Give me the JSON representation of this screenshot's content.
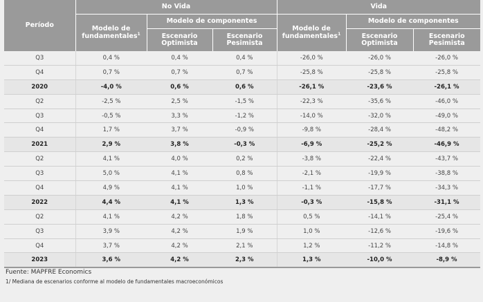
{
  "header": {
    "period": "Período",
    "no_vida": "No Vida",
    "vida": "Vida",
    "modelo_componentes": "Modelo de componentes",
    "modelo_fund_line1": "Modelo de",
    "modelo_fund_line2": "fundamentales",
    "footnote_mark": "1",
    "optimista_line1": "Escenario",
    "optimista_line2": "Optimista",
    "pesimista_line1": "Escenario",
    "pesimista_line2": "Pesimista"
  },
  "rows": [
    {
      "period": "Q3",
      "annual": false,
      "cells": [
        "0,4 %",
        "0,4 %",
        "0,4 %",
        "-26,0 %",
        "-26,0 %",
        "-26,0 %"
      ]
    },
    {
      "period": "Q4",
      "annual": false,
      "cells": [
        "0,7 %",
        "0,7 %",
        "0,7 %",
        "-25,8 %",
        "-25,8 %",
        "-25,8 %"
      ]
    },
    {
      "period": "2020",
      "annual": true,
      "cells": [
        "-4,0 %",
        "0,6 %",
        "0,6 %",
        "-26,1 %",
        "-23,6 %",
        "-26,1 %"
      ]
    },
    {
      "period": "Q2",
      "annual": false,
      "cells": [
        "-2,5 %",
        "2,5 %",
        "-1,5 %",
        "-22,3 %",
        "-35,6 %",
        "-46,0 %"
      ]
    },
    {
      "period": "Q3",
      "annual": false,
      "cells": [
        "-0,5 %",
        "3,3 %",
        "-1,2 %",
        "-14,0 %",
        "-32,0 %",
        "-49,0 %"
      ]
    },
    {
      "period": "Q4",
      "annual": false,
      "cells": [
        "1,7 %",
        "3,7 %",
        "-0,9 %",
        "-9,8 %",
        "-28,4 %",
        "-48,2 %"
      ]
    },
    {
      "period": "2021",
      "annual": true,
      "cells": [
        "2,9 %",
        "3,8 %",
        "-0,3 %",
        "-6,9 %",
        "-25,2 %",
        "-46,9 %"
      ]
    },
    {
      "period": "Q2",
      "annual": false,
      "cells": [
        "4,1 %",
        "4,0 %",
        "0,2 %",
        "-3,8 %",
        "-22,4 %",
        "-43,7 %"
      ]
    },
    {
      "period": "Q3",
      "annual": false,
      "cells": [
        "5,0 %",
        "4,1 %",
        "0,8 %",
        "-2,1 %",
        "-19,9 %",
        "-38,8 %"
      ]
    },
    {
      "period": "Q4",
      "annual": false,
      "cells": [
        "4,9 %",
        "4,1 %",
        "1,0 %",
        "-1,1 %",
        "-17,7 %",
        "-34,3 %"
      ]
    },
    {
      "period": "2022",
      "annual": true,
      "cells": [
        "4,4 %",
        "4,1 %",
        "1,3 %",
        "-0,3 %",
        "-15,8 %",
        "-31,1 %"
      ]
    },
    {
      "period": "Q2",
      "annual": false,
      "cells": [
        "4,1 %",
        "4,2 %",
        "1,8 %",
        "0,5 %",
        "-14,1 %",
        "-25,4 %"
      ]
    },
    {
      "period": "Q3",
      "annual": false,
      "cells": [
        "3,9 %",
        "4,2 %",
        "1,9 %",
        "1,0 %",
        "-12,6 %",
        "-19,6 %"
      ]
    },
    {
      "period": "Q4",
      "annual": false,
      "cells": [
        "3,7 %",
        "4,2 %",
        "2,1 %",
        "1,2 %",
        "-11,2 %",
        "-14,8 %"
      ]
    },
    {
      "period": "2023",
      "annual": true,
      "cells": [
        "3,6 %",
        "4,2 %",
        "2,3 %",
        "1,3 %",
        "-10,0 %",
        "-8,9 %"
      ]
    }
  ],
  "notes": {
    "source": "Fuente: MAPFRE Economics",
    "footnote": "1/ Mediana de escenarios conforme al modelo de fundamentales macroeconómicos"
  }
}
